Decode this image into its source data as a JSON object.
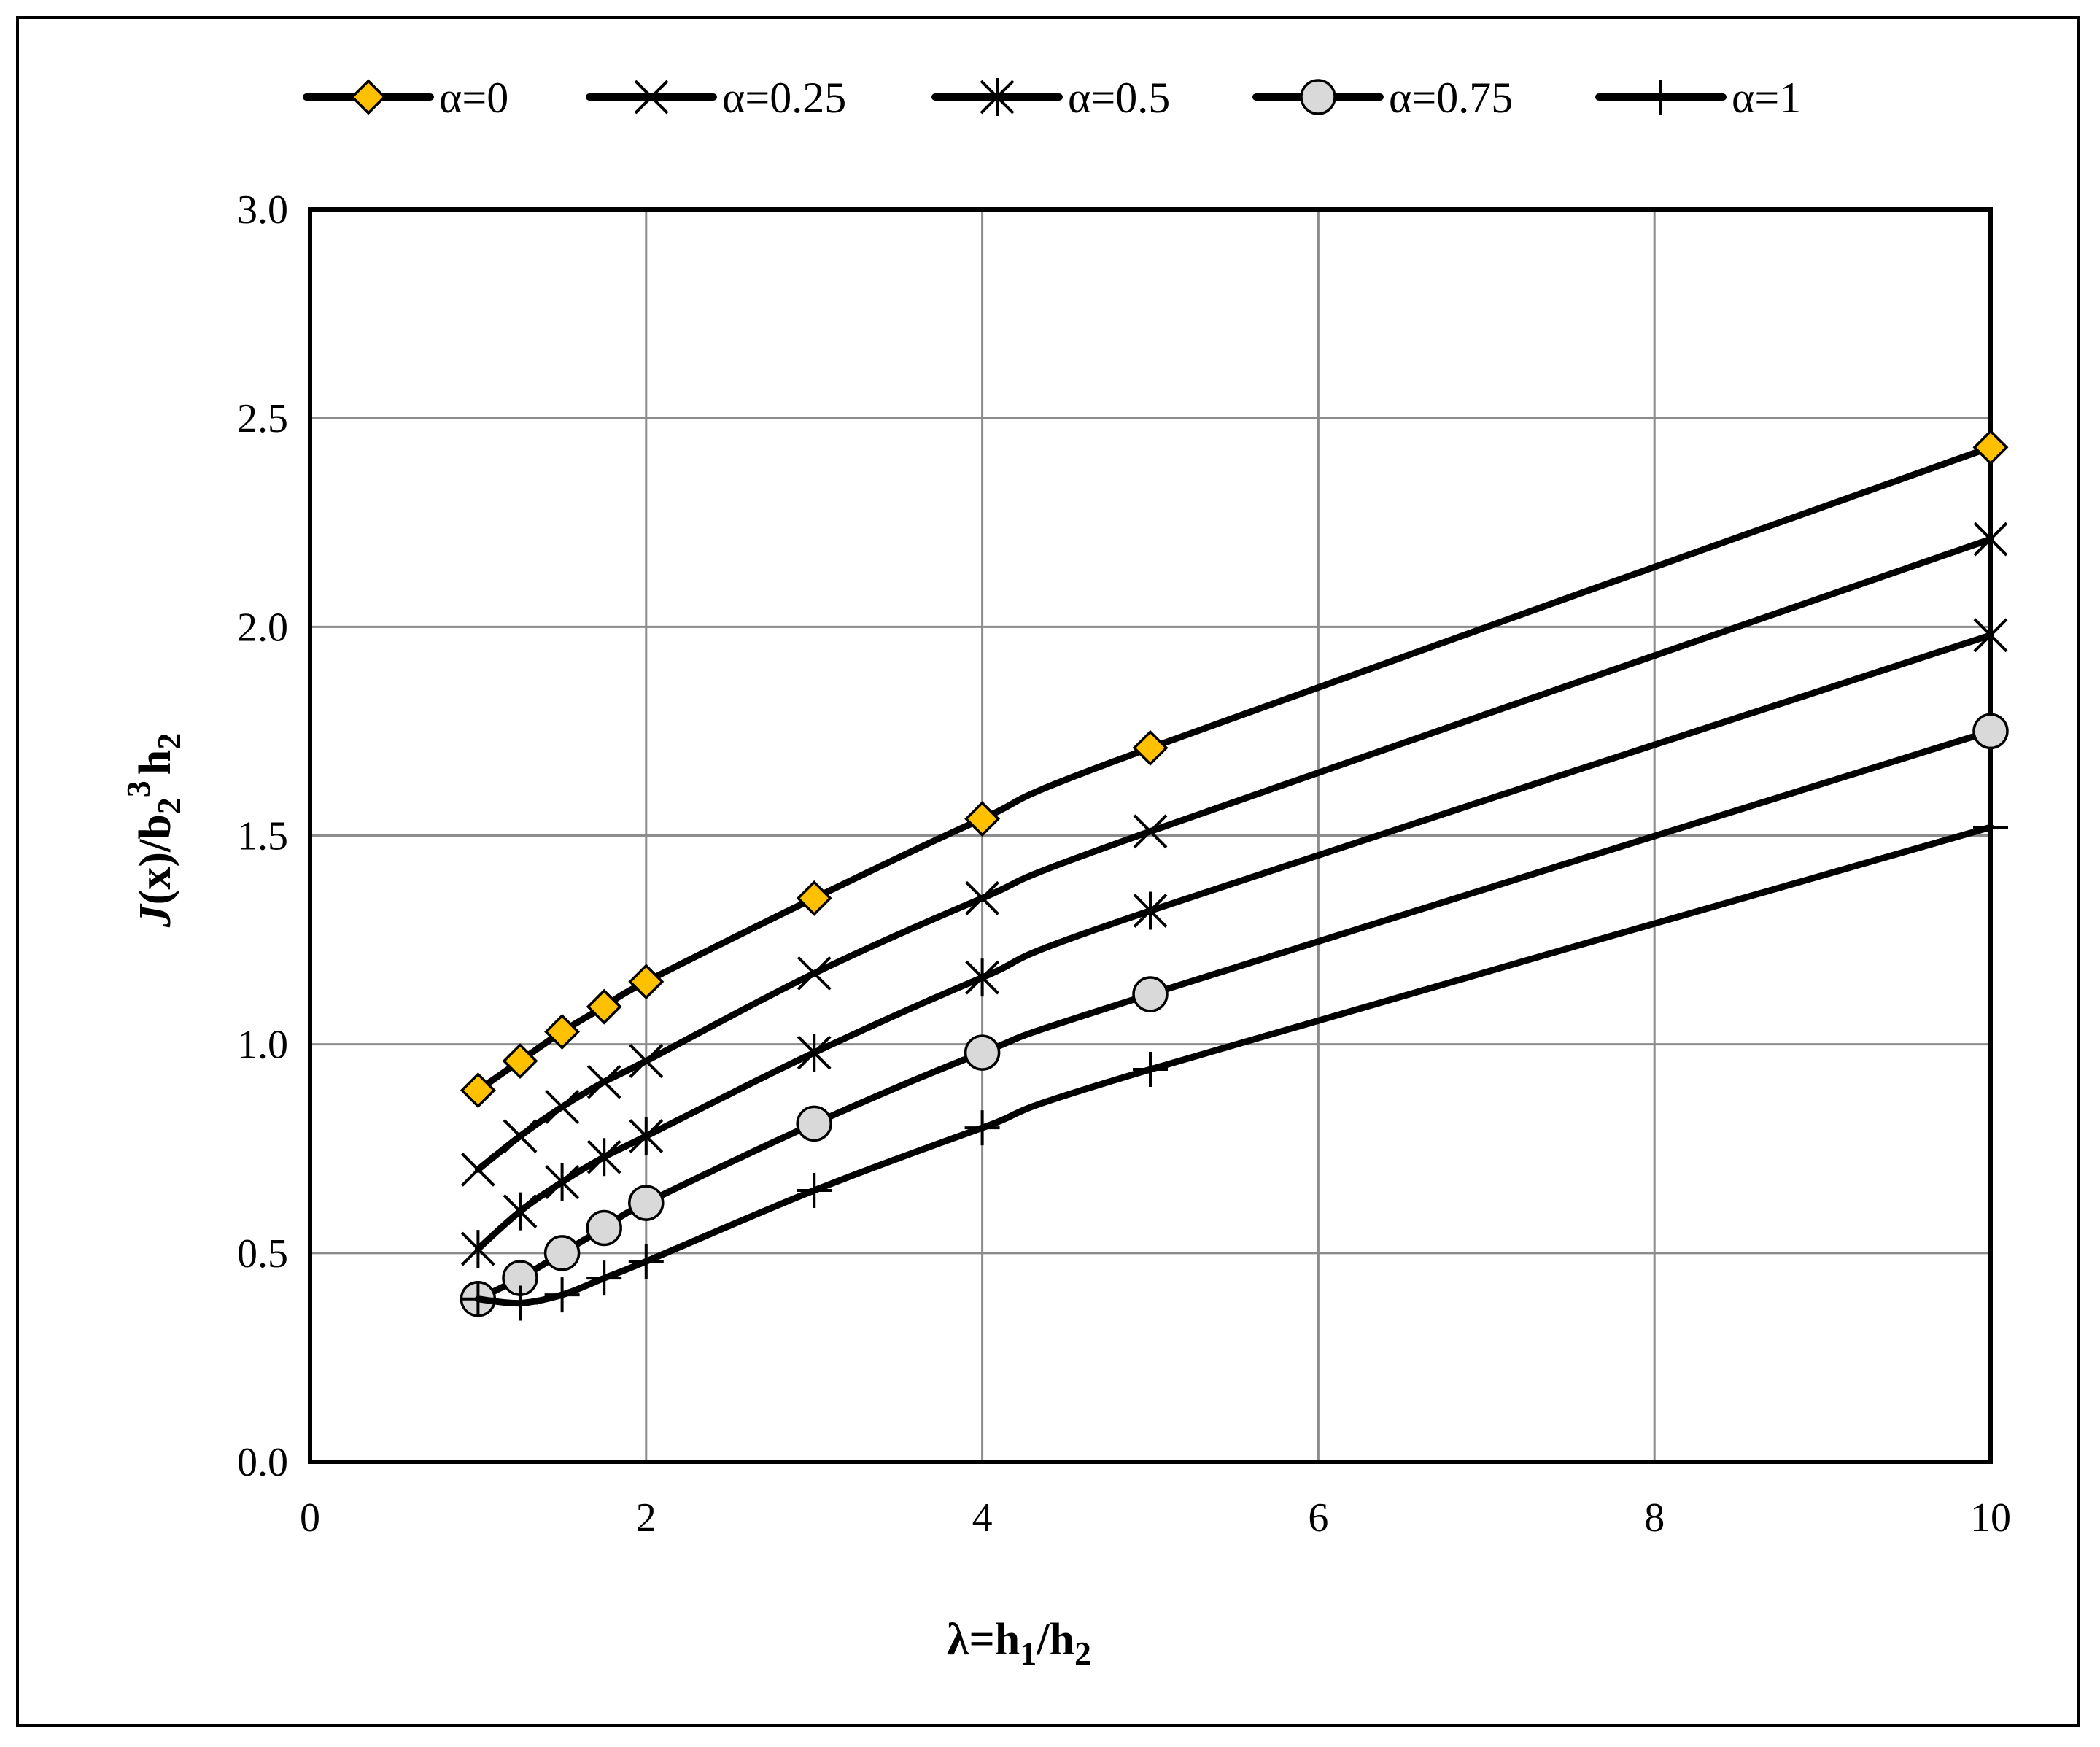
{
  "chart_data": {
    "type": "line",
    "xlim": [
      0,
      10
    ],
    "ylim": [
      0.0,
      3.0
    ],
    "x_ticks": [
      "0",
      "2",
      "4",
      "6",
      "8",
      "10"
    ],
    "y_ticks": [
      "0.0",
      "0.5",
      "1.0",
      "1.5",
      "2.0",
      "2.5",
      "3.0"
    ],
    "grid": true,
    "legend_position": "top",
    "x_label": {
      "prefix": "λ=h",
      "sub1": "1",
      "mid": "/h",
      "sub2": "2"
    },
    "y_label": {
      "J": "J",
      "a": "(x)/b",
      "sub1": "2",
      "sup": "3",
      "b": "h",
      "sub2": "2"
    },
    "x": [
      1,
      1.25,
      1.5,
      1.75,
      2,
      3,
      4,
      5,
      10
    ],
    "series": [
      {
        "name": "α=0",
        "marker": "diamond",
        "color": "#FFC000",
        "values": [
          0.89,
          0.96,
          1.03,
          1.09,
          1.15,
          1.35,
          1.54,
          1.71,
          2.43
        ]
      },
      {
        "name": "α=0.25",
        "marker": "x",
        "values": [
          0.7,
          0.78,
          0.85,
          0.91,
          0.96,
          1.17,
          1.35,
          1.51,
          2.21
        ]
      },
      {
        "name": "α=0.5",
        "marker": "star",
        "values": [
          0.51,
          0.6,
          0.67,
          0.73,
          0.78,
          0.98,
          1.16,
          1.32,
          1.98
        ]
      },
      {
        "name": "α=0.75",
        "marker": "circle",
        "color": "#D9D9D9",
        "values": [
          0.39,
          0.44,
          0.5,
          0.56,
          0.62,
          0.81,
          0.98,
          1.12,
          1.75
        ]
      },
      {
        "name": "α=1",
        "marker": "plus",
        "values": [
          0.39,
          0.38,
          0.4,
          0.44,
          0.48,
          0.65,
          0.8,
          0.94,
          1.52
        ]
      }
    ]
  }
}
